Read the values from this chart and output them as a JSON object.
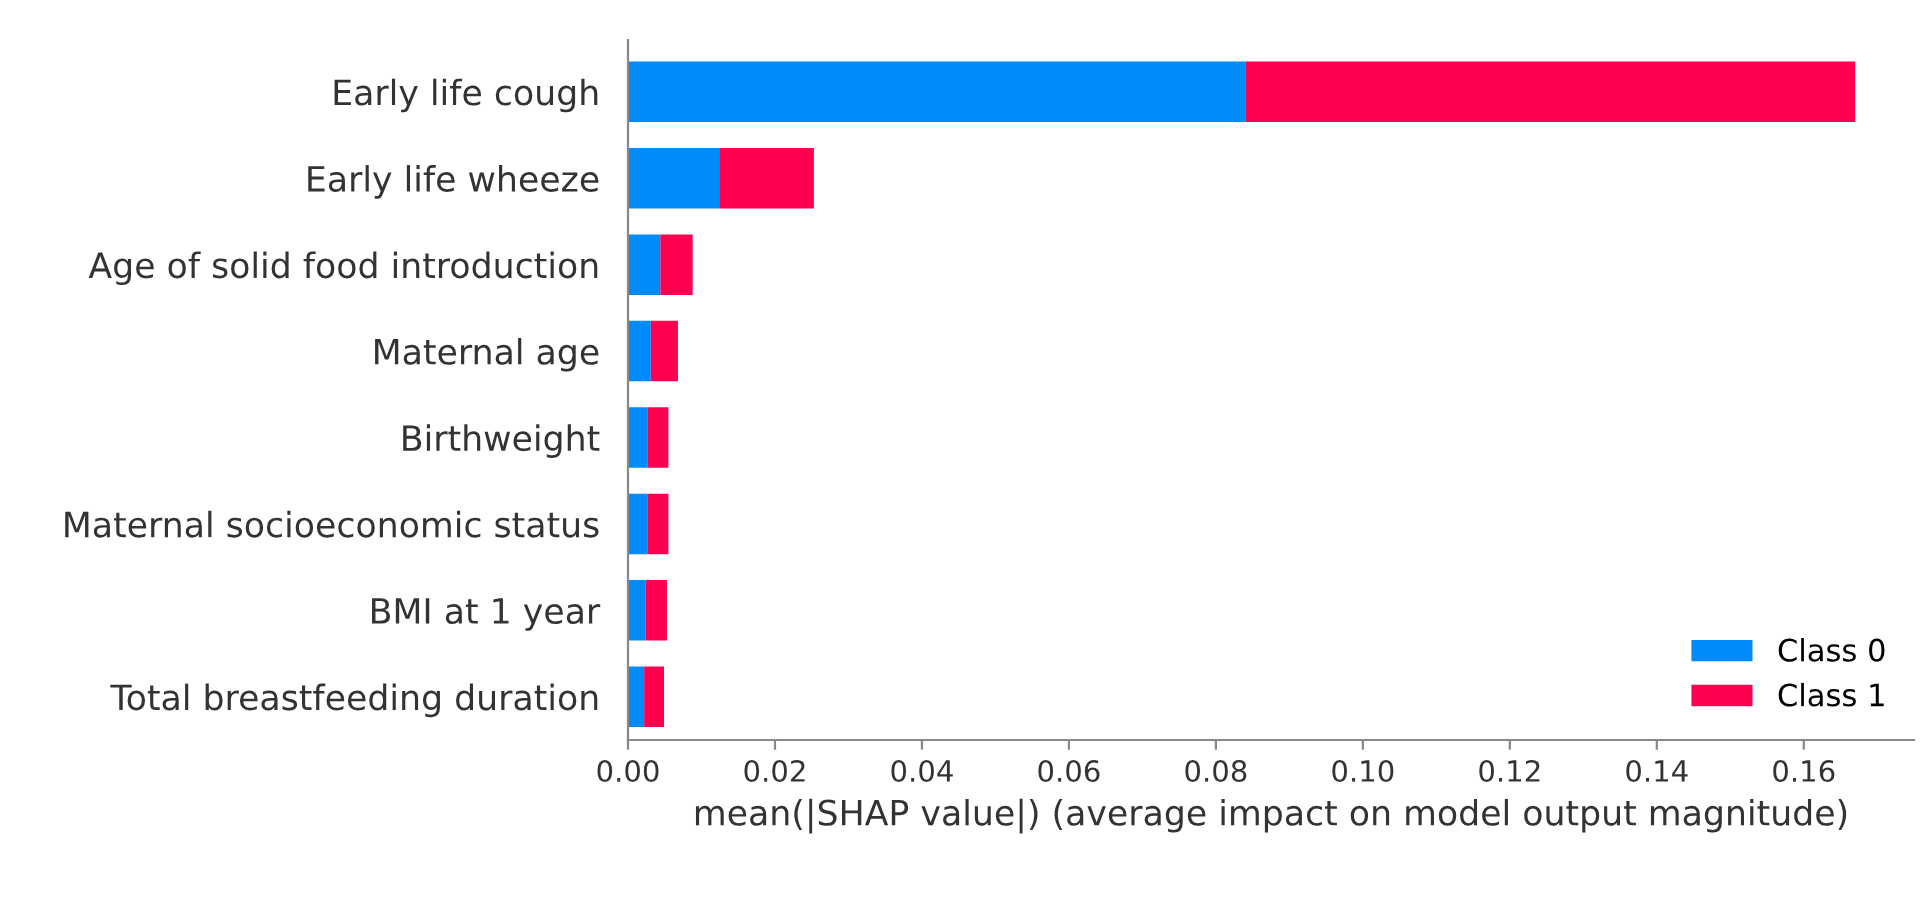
{
  "chart_data": {
    "type": "bar",
    "orientation": "horizontal",
    "stacked": true,
    "categories": [
      "Early life cough",
      "Early life wheeze",
      "Age of solid food introduction",
      "Maternal age",
      "Birthweight",
      "Maternal socioeconomic status",
      "BMI at 1 year",
      "Total breastfeeding duration"
    ],
    "series": [
      {
        "name": "Class 0",
        "color": "#008bfb",
        "values": [
          0.084,
          0.0124,
          0.0044,
          0.0031,
          0.0027,
          0.0027,
          0.0024,
          0.0022
        ]
      },
      {
        "name": "Class 1",
        "color": "#ff0051",
        "values": [
          0.083,
          0.0129,
          0.0044,
          0.0037,
          0.0028,
          0.0028,
          0.0029,
          0.0027
        ]
      }
    ],
    "xlabel": "mean(|SHAP value|) (average impact on model output magnitude)",
    "xlim": [
      0,
      0.175
    ],
    "xticks": [
      {
        "value": 0,
        "label": "0.00"
      },
      {
        "value": 0.02,
        "label": "0.02"
      },
      {
        "value": 0.04,
        "label": "0.04"
      },
      {
        "value": 0.06,
        "label": "0.06"
      },
      {
        "value": 0.08,
        "label": "0.08"
      },
      {
        "value": 0.1,
        "label": "0.10"
      },
      {
        "value": 0.12,
        "label": "0.12"
      },
      {
        "value": 0.14,
        "label": "0.14"
      },
      {
        "value": 0.16,
        "label": "0.16"
      }
    ],
    "legend": "lower right",
    "grid": false
  }
}
